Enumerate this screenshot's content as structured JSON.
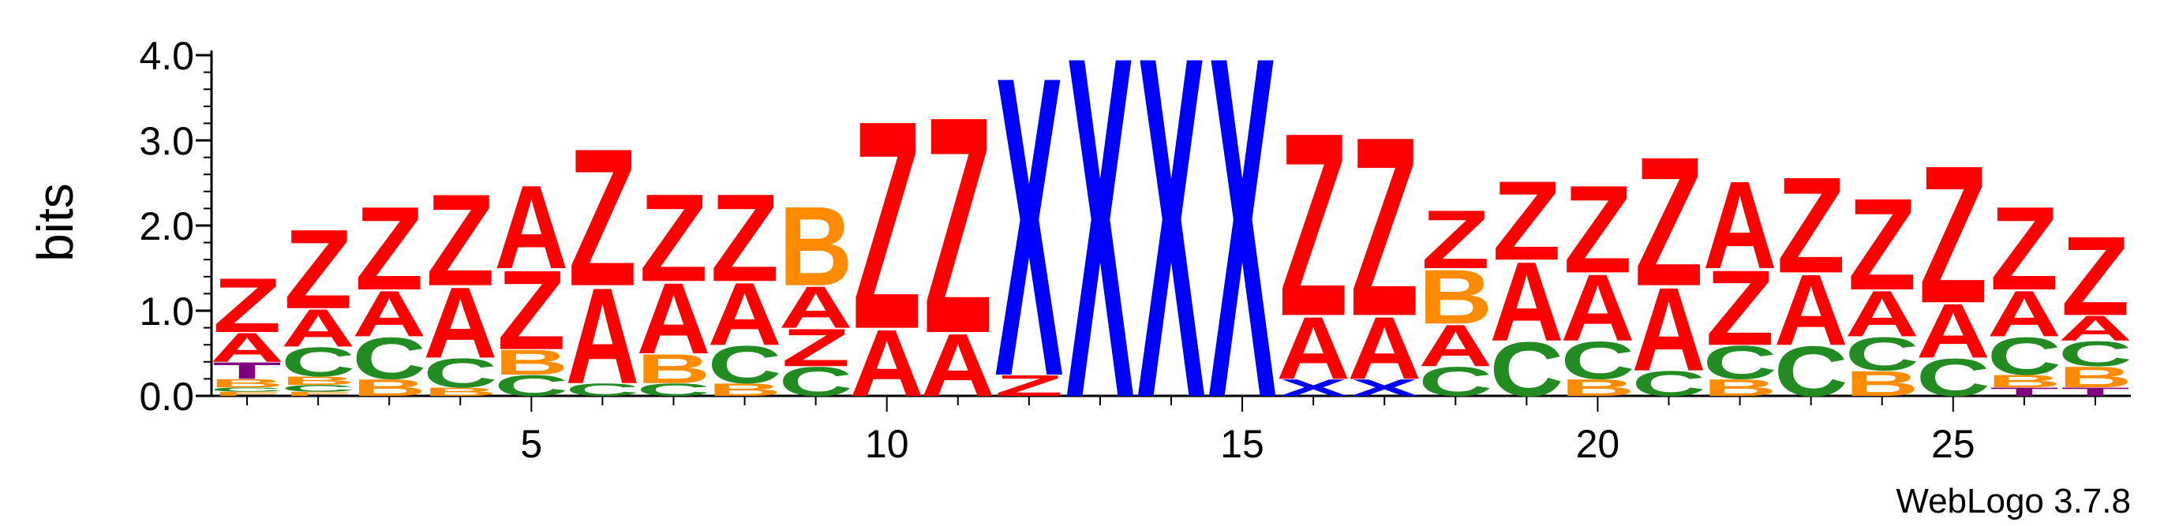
{
  "chart_data": {
    "type": "sequence-logo",
    "ylabel": "bits",
    "ylim": [
      0,
      4.0
    ],
    "y_ticks": [
      "0.0",
      "1.0",
      "2.0",
      "3.0",
      "4.0"
    ],
    "x_ticks": [
      5,
      10,
      15,
      20,
      25
    ],
    "credit": "WebLogo 3.7.8",
    "colors": {
      "Z": "#ff0000",
      "A": "#ff0000",
      "X": "#0000ff",
      "B": "#ff8c00",
      "C": "#228b22",
      "T": "#800080"
    },
    "positions": [
      {
        "pos": 1,
        "stack": [
          [
            "F",
            0.05
          ],
          [
            "C",
            0.05
          ],
          [
            "B",
            0.1
          ],
          [
            "T",
            0.2
          ],
          [
            "A",
            0.35
          ],
          [
            "Z",
            0.65
          ]
        ]
      },
      {
        "pos": 2,
        "stack": [
          [
            "F",
            0.05
          ],
          [
            "C",
            0.08
          ],
          [
            "B",
            0.1
          ],
          [
            "C",
            0.35
          ],
          [
            "A",
            0.45
          ],
          [
            "Z",
            0.95
          ]
        ]
      },
      {
        "pos": 3,
        "stack": [
          [
            "B",
            0.2
          ],
          [
            "C",
            0.5
          ],
          [
            "A",
            0.55
          ],
          [
            "Z",
            1.0
          ]
        ]
      },
      {
        "pos": 4,
        "stack": [
          [
            "B",
            0.1
          ],
          [
            "C",
            0.35
          ],
          [
            "A",
            0.85
          ],
          [
            "Z",
            1.1
          ]
        ]
      },
      {
        "pos": 5,
        "stack": [
          [
            "C",
            0.25
          ],
          [
            "B",
            0.3
          ],
          [
            "Z",
            0.95
          ],
          [
            "A",
            1.0
          ]
        ]
      },
      {
        "pos": 6,
        "stack": [
          [
            "C",
            0.15
          ],
          [
            "A",
            1.15
          ],
          [
            "Z",
            1.65
          ]
        ]
      },
      {
        "pos": 7,
        "stack": [
          [
            "C",
            0.15
          ],
          [
            "B",
            0.35
          ],
          [
            "A",
            0.85
          ],
          [
            "Z",
            1.05
          ]
        ]
      },
      {
        "pos": 8,
        "stack": [
          [
            "B",
            0.15
          ],
          [
            "C",
            0.45
          ],
          [
            "A",
            0.75
          ],
          [
            "Z",
            1.05
          ]
        ]
      },
      {
        "pos": 9,
        "stack": [
          [
            "C",
            0.35
          ],
          [
            "Z",
            0.45
          ],
          [
            "A",
            0.5
          ],
          [
            "B",
            0.95
          ]
        ]
      },
      {
        "pos": 10,
        "stack": [
          [
            "A",
            0.8
          ],
          [
            "Z",
            2.5
          ]
        ]
      },
      {
        "pos": 11,
        "stack": [
          [
            "A",
            0.75
          ],
          [
            "Z",
            2.6
          ]
        ]
      },
      {
        "pos": 12,
        "stack": [
          [
            "Z",
            0.25
          ],
          [
            "X",
            3.6
          ]
        ]
      },
      {
        "pos": 13,
        "stack": [
          [
            "X",
            4.1
          ]
        ]
      },
      {
        "pos": 14,
        "stack": [
          [
            "X",
            4.1
          ]
        ]
      },
      {
        "pos": 15,
        "stack": [
          [
            "X",
            4.1
          ]
        ]
      },
      {
        "pos": 16,
        "stack": [
          [
            "X",
            0.2
          ],
          [
            "A",
            0.75
          ],
          [
            "Z",
            2.2
          ]
        ]
      },
      {
        "pos": 17,
        "stack": [
          [
            "X",
            0.2
          ],
          [
            "A",
            0.75
          ],
          [
            "Z",
            2.15
          ]
        ]
      },
      {
        "pos": 18,
        "stack": [
          [
            "C",
            0.35
          ],
          [
            "A",
            0.5
          ],
          [
            "B",
            0.65
          ],
          [
            "Z",
            0.7
          ]
        ]
      },
      {
        "pos": 19,
        "stack": [
          [
            "C",
            0.65
          ],
          [
            "A",
            0.95
          ],
          [
            "Z",
            0.95
          ]
        ]
      },
      {
        "pos": 20,
        "stack": [
          [
            "B",
            0.2
          ],
          [
            "C",
            0.45
          ],
          [
            "A",
            0.8
          ],
          [
            "Z",
            1.05
          ]
        ]
      },
      {
        "pos": 21,
        "stack": [
          [
            "C",
            0.3
          ],
          [
            "A",
            1.0
          ],
          [
            "Z",
            1.55
          ]
        ]
      },
      {
        "pos": 22,
        "stack": [
          [
            "B",
            0.2
          ],
          [
            "C",
            0.4
          ],
          [
            "Z",
            0.9
          ],
          [
            "A",
            1.05
          ]
        ]
      },
      {
        "pos": 23,
        "stack": [
          [
            "C",
            0.6
          ],
          [
            "A",
            0.85
          ],
          [
            "Z",
            1.15
          ]
        ]
      },
      {
        "pos": 24,
        "stack": [
          [
            "B",
            0.3
          ],
          [
            "C",
            0.4
          ],
          [
            "A",
            0.55
          ],
          [
            "Z",
            1.1
          ]
        ]
      },
      {
        "pos": 25,
        "stack": [
          [
            "C",
            0.45
          ],
          [
            "A",
            0.65
          ],
          [
            "Z",
            1.65
          ]
        ]
      },
      {
        "pos": 26,
        "stack": [
          [
            "T",
            0.1
          ],
          [
            "B",
            0.15
          ],
          [
            "C",
            0.45
          ],
          [
            "A",
            0.55
          ],
          [
            "Z",
            1.0
          ]
        ]
      },
      {
        "pos": 27,
        "stack": [
          [
            "T",
            0.1
          ],
          [
            "B",
            0.25
          ],
          [
            "C",
            0.3
          ],
          [
            "A",
            0.3
          ],
          [
            "Z",
            0.95
          ]
        ]
      }
    ]
  }
}
